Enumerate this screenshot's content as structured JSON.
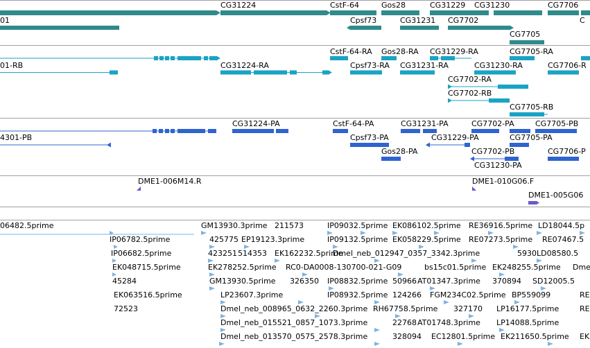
{
  "colors": {
    "gene": "#2f8b8b",
    "transcript": "#1aa3c4",
    "protein": "#2f63d0",
    "clone": "#6a5acd",
    "est": "#7fb3e0",
    "separator": "#a0a0a0"
  },
  "tracks": {
    "genes": {
      "labels": {
        "g0": "01",
        "g1": "CG31224",
        "g2": "CstF-64",
        "g3": "Gos28",
        "g4": "CG31229",
        "g5": "CG31230",
        "g6": "CG7706",
        "g7": "Cpsf73",
        "g8": "CG31231",
        "g9": "CG7702",
        "g10": "CG7705",
        "g11": "C"
      }
    },
    "transcripts": {
      "labels": {
        "t0": "01-RB",
        "t1": "CG31224-RA",
        "t2": "CstF-64-RA",
        "t3": "Gos28-RA",
        "t4": "CG31229-RA",
        "t5": "CG7705-RA",
        "t6": "Cpsf73-RA",
        "t7": "CG31231-RA",
        "t8": "CG31230-RA",
        "t9": "CG7706-R",
        "t10": "CG7702-RA",
        "t11": "CG7702-RB",
        "t12": "CG7705-RB"
      }
    },
    "proteins": {
      "labels": {
        "p0": "4301-PB",
        "p1": "CG31224-PA",
        "p2": "CstF-64-PA",
        "p3": "CG31231-PA",
        "p4": "CG7702-PA",
        "p5": "CG7705-PB",
        "p6": "Cpsf73-PA",
        "p7": "CG31229-PA",
        "p8": "CG7705-PA",
        "p9": "Gos28-PA",
        "p10": "CG7702-PB",
        "p11": "CG7706-P",
        "p12": "CG31230-PA"
      }
    },
    "clones": {
      "labels": {
        "c0": "DME1-006M14.R",
        "c1": "DME1-010G06.F",
        "c2": "DME1-005G06"
      }
    },
    "ests": {
      "labels": {
        "e0": "06482.5prime",
        "e1": "GM13930.3prime",
        "e2": "211573",
        "e3": "IP09032.5prime",
        "e4": "EK086102.5prime",
        "e5": "RE36916.5prime",
        "e6": "LD18044.5p",
        "e7": "IP06782.5prime",
        "e8": "425775",
        "e9": "EP19123.3prime",
        "e10": "IP09132.5prime",
        "e11": "EK058229.5prime",
        "e12": "RE07273.5prime",
        "e13": "RE07467.5",
        "e14": "IP06682.5prime",
        "e15": "423251",
        "e16": "514353",
        "e17": "EK162232.5prime",
        "e18": "Dmel_neb_012947_0357_3342.3prime",
        "e19": "5930",
        "e20": "LD08580.5",
        "e21": "EK048715.5prime",
        "e22": "EK278252.5prime",
        "e23": "RC0-DA0008-130700-021-G09",
        "e24": "bs15c01.5prime",
        "e25": "EK248255.5prime",
        "e26": "Dme",
        "e27": "45284",
        "e28": "GM13930.5prime",
        "e29": "326350",
        "e30": "IP08832.5prime",
        "e31": "50966",
        "e32": "AT01347.3prime",
        "e33": "370894",
        "e34": "SD12005.5",
        "e35": "EK063516.5prime",
        "e36": "LP23607.3prime",
        "e37": "IP08932.5prime",
        "e38": "124266",
        "e39": "FGM234C02.5prime",
        "e40": "BP559099",
        "e41": "RE",
        "e42": "72523",
        "e43": "Dmel_neb_008965_0632_2260.3prime",
        "e44": "RH67758.5prime",
        "e45": "327170",
        "e46": "LP16177.5prime",
        "e47": "RE",
        "e48": "Dmel_neb_015521_0857_1073.3prime",
        "e49": "22768",
        "e50": "AT01748.3prime",
        "e51": "LP14088.5prime",
        "e52": "Dmel_neb_013570_0575_2578.3prime",
        "e53": "328094",
        "e54": "EC12801.5prime",
        "e55": "EK211650.5prime",
        "e56": "EK"
      }
    }
  }
}
